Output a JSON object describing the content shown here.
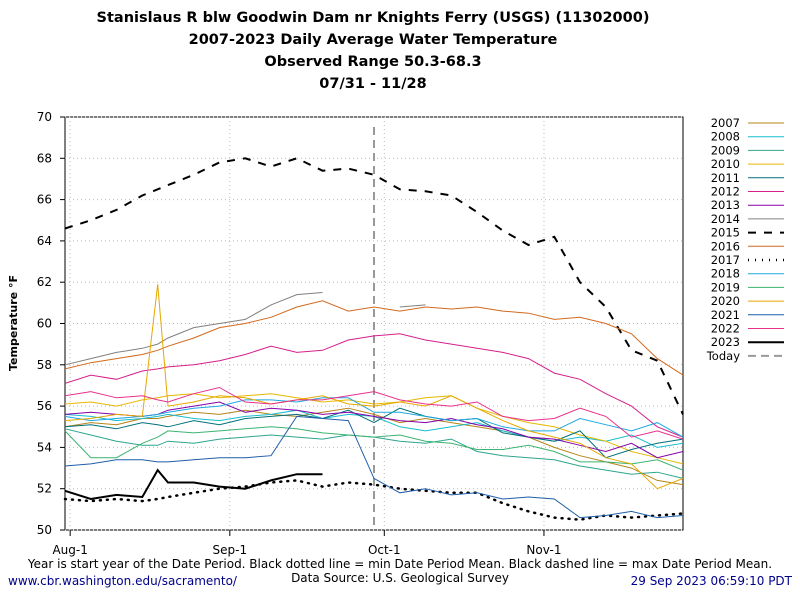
{
  "chart_data": {
    "type": "line",
    "title": [
      "Stanislaus R blw Goodwin Dam nr Knights Ferry (USGS) (11302000)",
      "2007-2023 Daily Average Water Temperature",
      "Observed Range 50.3-68.3",
      "07/31 - 11/28"
    ],
    "y_label": "Temperature °F",
    "x": [
      0,
      5,
      10,
      15,
      18,
      20,
      25,
      30,
      35,
      40,
      45,
      50,
      55,
      60,
      65,
      70,
      75,
      80,
      85,
      90,
      95,
      100,
      105,
      110,
      115,
      120
    ],
    "xlim": [
      0,
      120
    ],
    "xticks": [
      {
        "value": 1,
        "label": "Aug-1"
      },
      {
        "value": 32,
        "label": "Sep-1"
      },
      {
        "value": 62,
        "label": "Oct-1"
      },
      {
        "value": 93,
        "label": "Nov-1"
      }
    ],
    "ylim": [
      50,
      70
    ],
    "yticks": [
      50,
      52,
      54,
      56,
      58,
      60,
      62,
      64,
      66,
      68,
      70
    ],
    "grid": true,
    "legend": "right",
    "series": [
      {
        "name": "2007",
        "color": "#b5851a",
        "values": [
          55,
          55.2,
          55.1,
          55.4,
          55.4,
          55.5,
          55.7,
          55.6,
          55.8,
          55.6,
          55.5,
          55.7,
          55.9,
          55.6,
          55.2,
          55.4,
          55.2,
          55,
          54.8,
          54.5,
          54,
          53.6,
          53.3,
          53,
          52.4,
          52.2
        ]
      },
      {
        "name": "2008",
        "color": "#17becf",
        "values": [
          55.6,
          55.5,
          55.3,
          55.4,
          55.5,
          55.6,
          55.4,
          55.3,
          55.5,
          55.6,
          55.8,
          55.4,
          55.6,
          55.5,
          55,
          54.8,
          55,
          55.2,
          54.8,
          54.5,
          54.3,
          54.5,
          54.3,
          54.6,
          54,
          54.2
        ]
      },
      {
        "name": "2009",
        "color": "#2ca58d",
        "values": [
          54.9,
          54.6,
          54.3,
          54.1,
          54.1,
          54.3,
          54.2,
          54.4,
          54.5,
          54.6,
          54.5,
          54.4,
          54.6,
          54.5,
          54.3,
          54.2,
          54.4,
          53.8,
          53.6,
          53.5,
          53.4,
          53.1,
          52.9,
          52.7,
          52.8,
          52.5
        ]
      },
      {
        "name": "2010",
        "color": "#e6b800",
        "values": [
          56.1,
          56.2,
          56,
          56.3,
          56.4,
          56.5,
          56.6,
          56.4,
          56.5,
          56.6,
          56.4,
          56.2,
          56.3,
          56.1,
          56.2,
          56.4,
          56.5,
          55.9,
          55.5,
          55.2,
          55,
          54.6,
          54.3,
          53.8,
          53.5,
          53.2
        ]
      },
      {
        "name": "2011",
        "color": "#00707a",
        "values": [
          55,
          55.1,
          54.9,
          55.2,
          55.1,
          55,
          55.3,
          55.1,
          55.4,
          55.5,
          55.6,
          55.4,
          55.8,
          55.2,
          55.9,
          55.5,
          55.3,
          55.4,
          54.7,
          54.5,
          54.3,
          54.8,
          53.5,
          53.9,
          54.2,
          54.4
        ]
      },
      {
        "name": "2012",
        "color": "#d61f8c",
        "values": [
          57.1,
          57.5,
          57.3,
          57.7,
          57.8,
          57.9,
          58,
          58.2,
          58.5,
          58.9,
          58.6,
          58.7,
          59.2,
          59.4,
          59.5,
          59.2,
          59,
          58.8,
          58.6,
          58.3,
          57.6,
          57.3,
          56.6,
          56,
          55,
          54.5
        ]
      },
      {
        "name": "2013",
        "color": "#8800aa",
        "values": [
          55.6,
          55.7,
          55.6,
          55.5,
          55.6,
          55.8,
          56,
          56.2,
          55.7,
          55.9,
          55.8,
          55.6,
          55.7,
          55.5,
          55.3,
          55.2,
          55.4,
          55.1,
          54.9,
          54.5,
          54.4,
          54.1,
          53.8,
          54.2,
          53.5,
          53.8
        ]
      },
      {
        "name": "2014",
        "color": "#808080",
        "values": [
          58,
          58.3,
          58.6,
          58.8,
          59,
          59.3,
          59.8,
          60,
          60.2,
          60.9,
          61.4,
          61.5,
          null,
          null,
          60.8,
          60.9,
          null,
          null,
          null,
          null,
          null,
          null,
          null,
          null,
          null,
          null
        ]
      },
      {
        "name": "2015",
        "color": "#000000",
        "style": "dashed",
        "values": [
          64.6,
          65,
          65.5,
          66.2,
          66.5,
          66.7,
          67.2,
          67.8,
          68,
          67.6,
          68,
          67.4,
          67.5,
          67.2,
          66.5,
          66.4,
          66.2,
          65.4,
          64.5,
          63.8,
          64.2,
          62,
          60.8,
          58.7,
          58.2,
          55.6
        ]
      },
      {
        "name": "2016",
        "color": "#d2691e",
        "values": [
          57.8,
          58.1,
          58.3,
          58.5,
          58.7,
          58.9,
          59.3,
          59.8,
          60,
          60.3,
          60.8,
          61.1,
          60.6,
          60.8,
          60.6,
          60.8,
          60.7,
          60.8,
          60.6,
          60.5,
          60.2,
          60.3,
          60,
          59.5,
          58.3,
          57.5
        ]
      },
      {
        "name": "2017",
        "color": "#000000",
        "style": "dotted",
        "values": [
          51.5,
          51.4,
          51.5,
          51.4,
          51.5,
          51.6,
          51.8,
          52,
          52.1,
          52.3,
          52.4,
          52.1,
          52.3,
          52.2,
          52,
          51.9,
          51.8,
          51.8,
          51.3,
          50.9,
          50.6,
          50.5,
          50.7,
          50.6,
          50.7,
          50.8
        ]
      },
      {
        "name": "2018",
        "color": "#1fa8e0",
        "values": [
          55.5,
          55.3,
          55.4,
          55.5,
          55.6,
          55.7,
          55.9,
          56,
          56.3,
          56.3,
          56.2,
          56.4,
          56.4,
          55.7,
          55.7,
          55.5,
          55.3,
          55.4,
          55,
          54.8,
          54.8,
          55.4,
          55.1,
          54.8,
          55.2,
          54.5
        ]
      },
      {
        "name": "2019",
        "color": "#3cb371",
        "values": [
          54.8,
          53.5,
          53.5,
          54.2,
          54.5,
          54.8,
          54.7,
          54.8,
          54.9,
          55,
          54.9,
          54.7,
          54.6,
          54.5,
          54.6,
          54.3,
          54.2,
          53.9,
          53.9,
          54.1,
          53.8,
          53.3,
          53.3,
          53.2,
          53.4,
          52.9
        ]
      },
      {
        "name": "2020",
        "color": "#e6a800",
        "values": [
          55.3,
          55.4,
          55.6,
          55.5,
          61.9,
          56,
          56.2,
          56.5,
          56.4,
          56.1,
          56.3,
          56.5,
          56.1,
          56,
          56.2,
          56,
          56.5,
          55.9,
          55.3,
          54.8,
          54.5,
          54.2,
          53.5,
          53.2,
          52,
          52.5
        ]
      },
      {
        "name": "2021",
        "color": "#1f5fa8",
        "values": [
          53.1,
          53.2,
          53.4,
          53.4,
          53.3,
          53.3,
          53.4,
          53.5,
          53.5,
          53.6,
          55.5,
          55.4,
          55.3,
          52.5,
          51.8,
          52,
          51.7,
          51.8,
          51.5,
          51.6,
          51.5,
          50.6,
          50.7,
          50.9,
          50.6,
          50.7
        ]
      },
      {
        "name": "2022",
        "color": "#e8308c",
        "values": [
          56.5,
          56.7,
          56.4,
          56.5,
          56.3,
          56.2,
          56.6,
          56.9,
          56.2,
          56.1,
          56.3,
          56.3,
          56.5,
          56.7,
          56.3,
          56.1,
          56,
          56.2,
          55.5,
          55.3,
          55.4,
          55.9,
          55.5,
          54.5,
          54.8,
          54.4
        ]
      },
      {
        "name": "2023",
        "color": "#000000",
        "style": "bold",
        "values": [
          51.9,
          51.5,
          51.7,
          51.6,
          52.9,
          52.3,
          52.3,
          52.1,
          52,
          52.4,
          52.7,
          52.7,
          null,
          null,
          null,
          null,
          null,
          null,
          null,
          null,
          null,
          null,
          null,
          null,
          null,
          null
        ]
      }
    ],
    "today": {
      "name": "Today",
      "x": 60,
      "color": "#999999"
    }
  },
  "footer": {
    "note": "Year is start year of the Date Period. Black dotted line = min Date Period Mean. Black dashed line = max Date Period Mean.",
    "url": "www.cbr.washington.edu/sacramento/",
    "source": "Data Source: U.S. Geological Survey",
    "timestamp": "29 Sep 2023 06:59:10 PDT"
  }
}
